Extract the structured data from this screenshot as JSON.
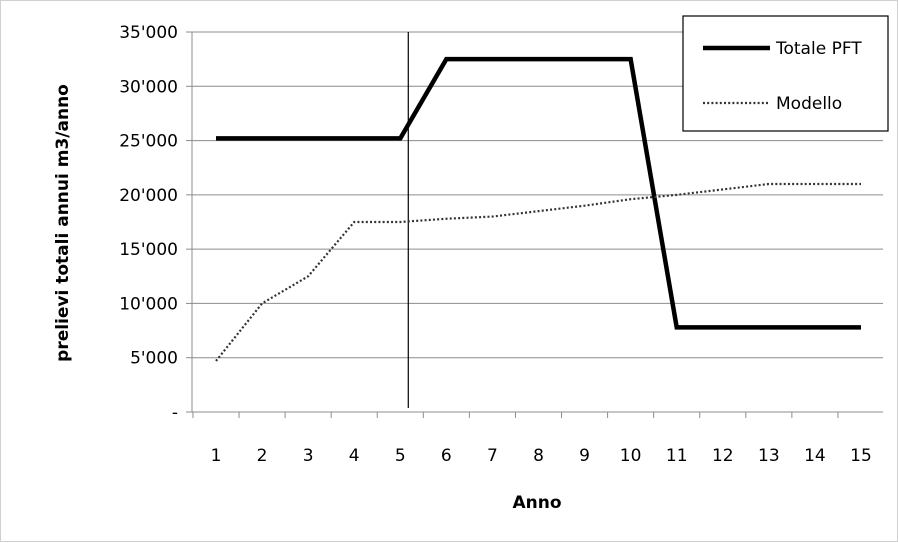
{
  "chart_data": {
    "type": "line",
    "title": "",
    "xlabel": "Anno",
    "ylabel": "prelievi totali annui m3/anno",
    "x": [
      1,
      2,
      3,
      4,
      5,
      6,
      7,
      8,
      9,
      10,
      11,
      12,
      13,
      14,
      15
    ],
    "x_tick_labels": [
      "1",
      "2",
      "3",
      "4",
      "5",
      "6",
      "7",
      "8",
      "9",
      "10",
      "11",
      "12",
      "13",
      "14",
      "15"
    ],
    "ylim": [
      0,
      35000
    ],
    "y_ticks": [
      0,
      5000,
      10000,
      15000,
      20000,
      25000,
      30000,
      35000
    ],
    "y_tick_labels": [
      "-",
      "5'000",
      "10'000",
      "15'000",
      "20'000",
      "25'000",
      "30'000",
      "35'000"
    ],
    "grid": "horizontal",
    "legend_position": "top-right",
    "reference_line": {
      "x": 5
    },
    "series": [
      {
        "name": "Totale PFT",
        "style": "solid",
        "color": "#000000",
        "values": [
          25200,
          25200,
          25200,
          25200,
          25200,
          32500,
          32500,
          32500,
          32500,
          32500,
          7800,
          7800,
          7800,
          7800,
          7800
        ]
      },
      {
        "name": "Modello",
        "style": "dotted",
        "color": "#333333",
        "values": [
          4700,
          10000,
          12500,
          17500,
          17500,
          17800,
          18000,
          18500,
          19000,
          19600,
          20000,
          20500,
          21000,
          21000,
          21000
        ]
      }
    ]
  }
}
